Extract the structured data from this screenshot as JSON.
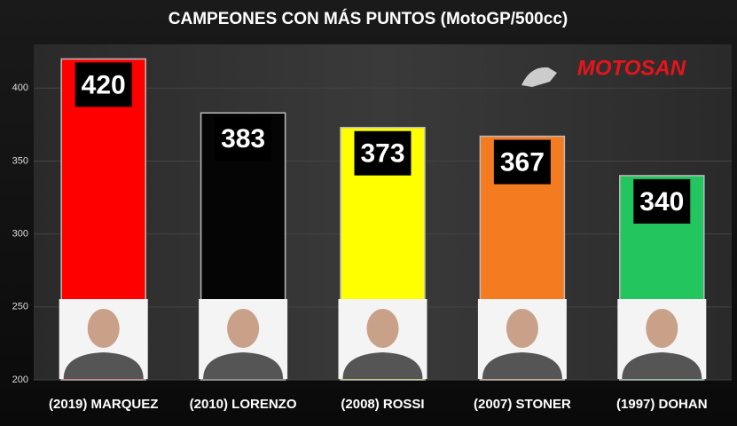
{
  "chart_data": {
    "type": "bar",
    "title": "CAMPEONES CON MÁS PUNTOS (MotoGP/500cc)",
    "logo": "MOTOSAN",
    "categories": [
      "(2019) MARQUEZ",
      "(2010) LORENZO",
      "(2008) ROSSI",
      "(2007) STONER",
      "(1997) DOHAN"
    ],
    "values": [
      420,
      383,
      373,
      367,
      340
    ],
    "colors": [
      "#ff0000",
      "#050505",
      "#ffff00",
      "#f47b20",
      "#22c55e"
    ],
    "ylim": [
      200,
      430
    ],
    "yticks": [
      200,
      250,
      300,
      350,
      400
    ],
    "grid": true
  }
}
